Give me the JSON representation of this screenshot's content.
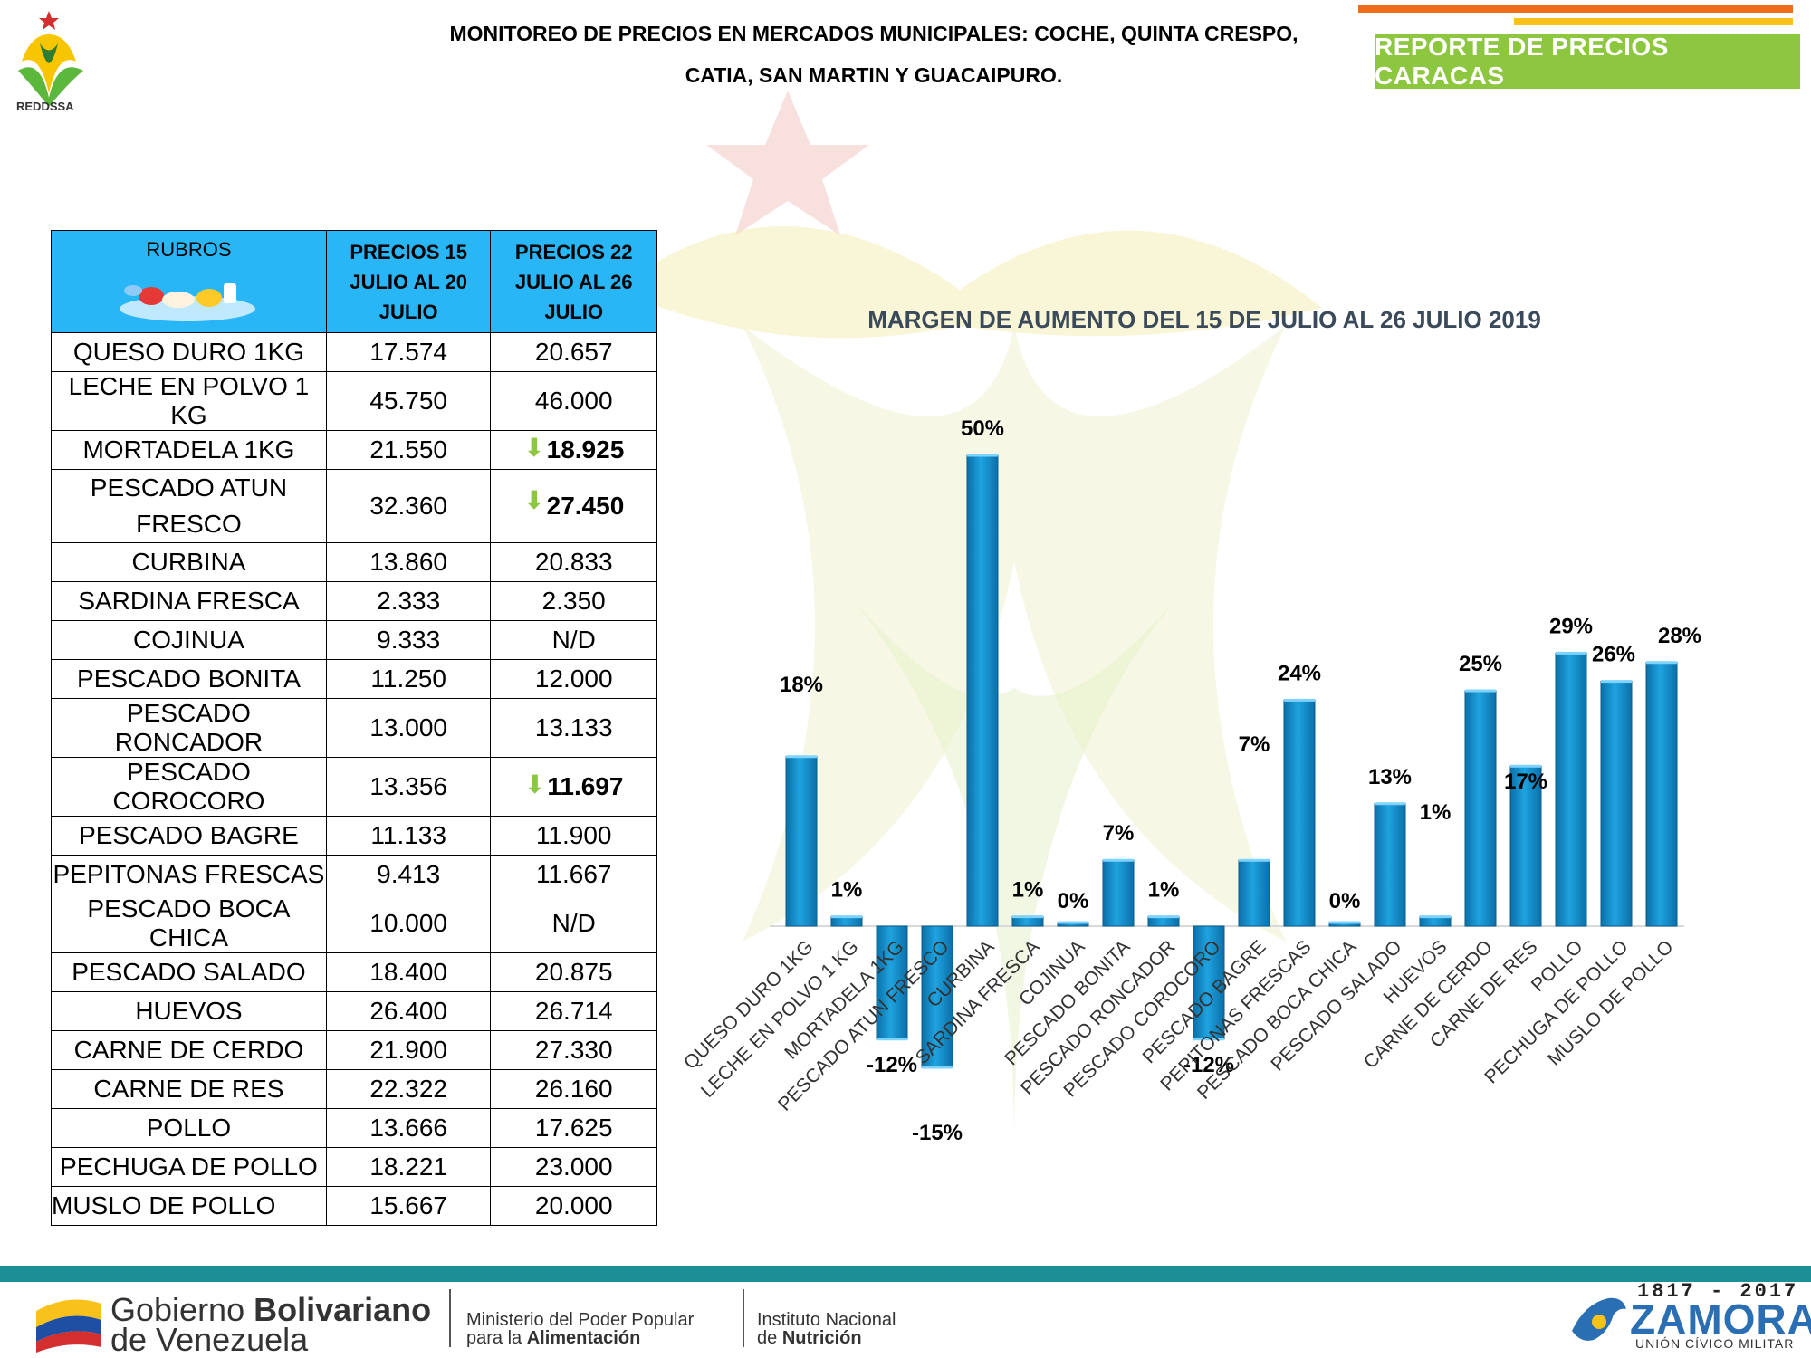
{
  "header": {
    "title_line1": "MONITOREO DE PRECIOS EN MERCADOS MUNICIPALES: COCHE, QUINTA CRESPO,",
    "title_line2": "CATIA, SAN MARTIN Y GUACAIPURO.",
    "logo_text": "REDDSSA",
    "report_badge": "REPORTE DE PRECIOS CARACAS"
  },
  "table": {
    "headers": {
      "rubros": "RUBROS",
      "col1": "PRECIOS 15 JULIO AL 20 JULIO",
      "col2": "PRECIOS 22 JULIO AL 26 JULIO"
    },
    "rows": [
      {
        "item": "QUESO DURO 1KG",
        "p1": "17.574",
        "p2": "20.657",
        "down": false
      },
      {
        "item": "LECHE EN POLVO 1 KG",
        "p1": "45.750",
        "p2": "46.000",
        "down": false
      },
      {
        "item": "MORTADELA 1KG",
        "p1": "21.550",
        "p2": "18.925",
        "down": true
      },
      {
        "item": "PESCADO ATUN FRESCO",
        "p1": "32.360",
        "p2": "27.450",
        "down": true
      },
      {
        "item": "CURBINA",
        "p1": "13.860",
        "p2": "20.833",
        "down": false
      },
      {
        "item": "SARDINA FRESCA",
        "p1": "2.333",
        "p2": "2.350",
        "down": false
      },
      {
        "item": "COJINUA",
        "p1": "9.333",
        "p2": "N/D",
        "down": false
      },
      {
        "item": "PESCADO BONITA",
        "p1": "11.250",
        "p2": "12.000",
        "down": false
      },
      {
        "item": "PESCADO RONCADOR",
        "p1": "13.000",
        "p2": "13.133",
        "down": false
      },
      {
        "item": "PESCADO COROCORO",
        "p1": "13.356",
        "p2": "11.697",
        "down": true
      },
      {
        "item": "PESCADO BAGRE",
        "p1": "11.133",
        "p2": "11.900",
        "down": false
      },
      {
        "item": "PEPITONAS FRESCAS",
        "p1": "9.413",
        "p2": "11.667",
        "down": false
      },
      {
        "item": "PESCADO BOCA CHICA",
        "p1": "10.000",
        "p2": "N/D",
        "down": false
      },
      {
        "item": "PESCADO SALADO",
        "p1": "18.400",
        "p2": "20.875",
        "down": false
      },
      {
        "item": "HUEVOS",
        "p1": "26.400",
        "p2": "26.714",
        "down": false
      },
      {
        "item": "CARNE DE CERDO",
        "p1": "21.900",
        "p2": "27.330",
        "down": false
      },
      {
        "item": "CARNE DE RES",
        "p1": "22.322",
        "p2": "26.160",
        "down": false
      },
      {
        "item": "POLLO",
        "p1": "13.666",
        "p2": "17.625",
        "down": false
      },
      {
        "item": "PECHUGA DE POLLO",
        "p1": "18.221",
        "p2": "23.000",
        "down": false
      },
      {
        "item": "MUSLO DE POLLO",
        "p1": "15.667",
        "p2": "20.000",
        "down": false
      }
    ]
  },
  "chart_data": {
    "type": "bar",
    "title": "MARGEN DE AUMENTO DEL 15 DE JULIO AL 26 JULIO 2019",
    "categories": [
      "QUESO DURO 1KG",
      "LECHE EN POLVO 1 KG",
      "MORTADELA 1KG",
      "PESCADO ATUN FRESCO",
      "CURBINA",
      "SARDINA FRESCA",
      "COJINUA",
      "PESCADO BONITA",
      "PESCADO RONCADOR",
      "PESCADO COROCORO",
      "PESCADO BAGRE",
      "PEPITONAS FRESCAS",
      "PESCADO BOCA CHICA",
      "PESCADO SALADO",
      "HUEVOS",
      "CARNE DE CERDO",
      "CARNE DE RES",
      "POLLO",
      "PECHUGA DE POLLO",
      "MUSLO DE POLLO"
    ],
    "values": [
      18,
      1,
      -12,
      -15,
      50,
      1,
      0,
      7,
      1,
      -12,
      7,
      24,
      0,
      13,
      1,
      25,
      17,
      29,
      26,
      28
    ],
    "labels": [
      "18%",
      "1%",
      "-12%",
      "-15%",
      "50%",
      "1%",
      "0%",
      "7%",
      "1%",
      "-12%",
      "7%",
      "24%",
      "0%",
      "13%",
      "1%",
      "25%",
      "17%",
      "29%",
      "26%",
      "28%"
    ],
    "ylim": [
      -16,
      52
    ],
    "grid": false,
    "bar_color": "#1fa3e0"
  },
  "footer": {
    "gob_line1_normal": "Gobierno ",
    "gob_line1_bold": "Bolivariano",
    "gob_line2": "de Venezuela",
    "ministerio_line1": "Ministerio del Poder Popular",
    "ministerio_line2_normal": "para la ",
    "ministerio_line2_bold": "Alimentación",
    "instituto_line1": "Instituto Nacional",
    "instituto_line2_normal": "de ",
    "instituto_line2_bold": "Nutrición",
    "zamora_years": "1817 - 2017",
    "zamora_name": "ZAMORA",
    "zamora_sub": "UNIÓN CÍVICO MILITAR"
  }
}
